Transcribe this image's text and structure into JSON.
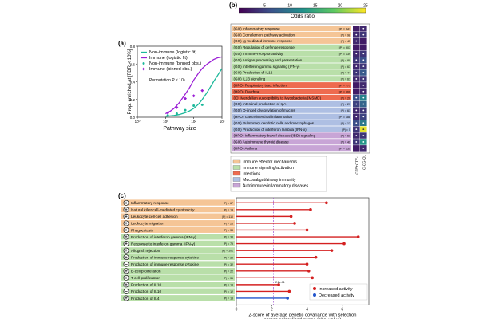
{
  "figure": {
    "panel_labels": {
      "a": "(a)",
      "b": "(b)",
      "c": "(c)"
    },
    "colors": {
      "immune": "#9b1fd6",
      "nonimmune": "#1bb89a",
      "cat_immune_effector": "#f5c596",
      "cat_immune_signaling": "#b9dfa9",
      "cat_infections": "#ee6b4f",
      "cat_mucosal": "#aebfe3",
      "cat_autoimmune": "#c8a5d6",
      "increased": "#d42020",
      "decreased": "#2255cc",
      "threshold": "#a050d0"
    }
  },
  "chart_data": [
    {
      "id": "a",
      "type": "line",
      "title": "",
      "xlabel": "Pathway size",
      "ylabel": "Prop. enriched at [FDR < 10%]",
      "xscale": "log",
      "xlim": [
        1,
        1000
      ],
      "ylim": [
        0,
        0.8
      ],
      "yticks": [
        0.0,
        0.2,
        0.4,
        0.6,
        0.8
      ],
      "ytick_labels": [
        "0.0",
        "0.2",
        "0.4",
        "0.6",
        "0.8"
      ],
      "xtick_labels": [
        "10⁰",
        "10¹",
        "10²",
        "10³"
      ],
      "annotation": "Permutation P < 10⁵",
      "legend": [
        "Non-immune (logistic fit)",
        "Immune (logistic fit)",
        "Non-immune (binned obs.)",
        "Immune (binned obs.)"
      ],
      "series": [
        {
          "name": "Non-immune (logistic fit)",
          "kind": "line",
          "x": [
            10,
            15,
            20,
            30,
            50,
            70,
            100,
            150,
            200,
            300,
            500,
            700,
            1000
          ],
          "y": [
            0.01,
            0.015,
            0.02,
            0.03,
            0.05,
            0.07,
            0.1,
            0.15,
            0.2,
            0.28,
            0.4,
            0.47,
            0.55
          ]
        },
        {
          "name": "Immune (logistic fit)",
          "kind": "line",
          "x": [
            10,
            15,
            20,
            30,
            50,
            70,
            100,
            150,
            200,
            300,
            500,
            700,
            1000
          ],
          "y": [
            0.04,
            0.07,
            0.1,
            0.16,
            0.26,
            0.33,
            0.42,
            0.5,
            0.55,
            0.6,
            0.65,
            0.67,
            0.68
          ]
        },
        {
          "name": "Non-immune (binned obs.)",
          "kind": "scatter",
          "x": [
            12,
            25,
            50,
            100,
            200
          ],
          "y": [
            0.02,
            0.04,
            0.08,
            0.13,
            0.14
          ]
        },
        {
          "name": "Immune (binned obs.)",
          "kind": "scatter",
          "x": [
            12,
            25,
            50,
            100,
            200
          ],
          "y": [
            0.05,
            0.11,
            0.21,
            0.24,
            0.3
          ]
        }
      ]
    },
    {
      "id": "b",
      "type": "heatmap",
      "colorbar_label": "Odds ratio",
      "colorbar_ticks": [
        "5",
        "10",
        "15",
        "20",
        "25"
      ],
      "colorbar_range": [
        0,
        25
      ],
      "columns": [
        "CTE+CTE-1",
        "C-CG-QL"
      ],
      "rows": [
        {
          "label": "(GO) Inflammatory response",
          "p": "|P| = 847",
          "cat": "cat_immune_effector",
          "v": [
            2,
            3
          ]
        },
        {
          "label": "(GO) Complement pathway activation",
          "p": "|P| = 98",
          "cat": "cat_immune_effector",
          "v": [
            3,
            4
          ]
        },
        {
          "label": "(GO) Ig-mediated immune response",
          "p": "|P| = 45",
          "cat": "cat_immune_effector",
          "v": [
            3,
            2
          ]
        },
        {
          "label": "(GO) Regulation of defense response",
          "p": "|P| = 903",
          "cat": "cat_immune_signaling",
          "v": [
            2,
            2
          ]
        },
        {
          "label": "(GO) Immune-receptor activity",
          "p": "|P| = 139",
          "cat": "cat_immune_signaling",
          "v": [
            3,
            4
          ]
        },
        {
          "label": "(GO) Antigen processing and presentation",
          "p": "|P| = 80",
          "cat": "cat_immune_signaling",
          "v": [
            4,
            6
          ]
        },
        {
          "label": "(GO) Interferon-gamma signaling (IFN-γ)",
          "p": "|P| = 63",
          "cat": "cat_immune_signaling",
          "v": [
            3,
            4
          ]
        },
        {
          "label": "(GO) Production of IL12",
          "p": "|P| = 44",
          "cat": "cat_immune_signaling",
          "v": [
            4,
            7
          ]
        },
        {
          "label": "(GO) IL23 signaling",
          "p": "|P| = 61",
          "cat": "cat_immune_signaling",
          "v": [
            3,
            4
          ]
        },
        {
          "label": "(HPO) Respiratory tract infection",
          "p": "|P| = 777",
          "cat": "cat_infections",
          "v": [
            2,
            3
          ]
        },
        {
          "label": "(HPO) Diarrhea",
          "p": "|P| = 566",
          "cat": "cat_infections",
          "v": [
            2,
            3
          ]
        },
        {
          "label": "(ID) Mendelian susceptibility to Mycobacteria (MSMD)",
          "p": "|P| = 20",
          "cat": "cat_infections",
          "v": [
            6,
            11
          ]
        },
        {
          "label": "(GO) Intestinal production of IgA",
          "p": "|P| = 21",
          "cat": "cat_mucosal",
          "v": [
            5,
            8
          ]
        },
        {
          "label": "(GO) O-linked glycosylation of mucins",
          "p": "|P| = 61",
          "cat": "cat_mucosal",
          "v": [
            3,
            4
          ]
        },
        {
          "label": "(HPO) Gastrointestinal inflammation",
          "p": "|P| = 188",
          "cat": "cat_mucosal",
          "v": [
            3,
            5
          ]
        },
        {
          "label": "(GO) Pulmonary dendritic cells and macrophages",
          "p": "|P| = 13",
          "cat": "cat_mucosal",
          "v": [
            6,
            10
          ]
        },
        {
          "label": "(GO) Production of interferon lambda (IFN-λ)",
          "p": "|P| = 5",
          "cat": "cat_mucosal",
          "v": [
            4,
            24
          ]
        },
        {
          "label": "(HPO) Inflammatory bowel disease (IBD) signaling",
          "p": "|P| = 61",
          "cat": "cat_autoimmune",
          "v": [
            3,
            4
          ]
        },
        {
          "label": "(GO) Autoimmune thyroid disease",
          "p": "|P| = 49",
          "cat": "cat_autoimmune",
          "v": [
            4,
            13
          ]
        },
        {
          "label": "(HPO) Asthma",
          "p": "|P| = 159",
          "cat": "cat_autoimmune",
          "v": [
            2,
            3
          ]
        }
      ],
      "legend": [
        {
          "label": "Immune effector mechanisms",
          "cat": "cat_immune_effector"
        },
        {
          "label": "Immune signaling/activation",
          "cat": "cat_immune_signaling"
        },
        {
          "label": "Infections",
          "cat": "cat_infections"
        },
        {
          "label": "Mucosal/gut/airway immunity",
          "cat": "cat_mucosal"
        },
        {
          "label": "Autoimmune/inflammatory diseases",
          "cat": "cat_autoimmune"
        }
      ]
    },
    {
      "id": "c",
      "type": "bar",
      "orientation": "horizontal",
      "xlabel": "Z-score of average genetic covariance with selection across colocalized genes (abs. value)",
      "xlim": [
        0,
        7.5
      ],
      "xticks": [
        0,
        2,
        4,
        6
      ],
      "xtick_labels": [
        "0",
        "2",
        "4",
        "6"
      ],
      "threshold": 2.1,
      "legend": [
        "Increased activity",
        "Decreased activity"
      ],
      "rows": [
        {
          "label": "Inflammatory response",
          "p": "|P| = 67",
          "sign": "+",
          "dir": "increased",
          "value": 5.1,
          "point_label": "",
          "cat": "cat_immune_effector"
        },
        {
          "label": "Natural killer cell-mediated cytotoxicity",
          "p": "|P| = 14",
          "sign": "+",
          "dir": "increased",
          "value": 4.2,
          "point_label": "",
          "cat": "cat_immune_effector"
        },
        {
          "label": "Leukocyte cell-cell adhesion",
          "p": "|P| = 110",
          "sign": "+",
          "dir": "increased",
          "value": 3.1,
          "point_label": "",
          "cat": "cat_immune_effector"
        },
        {
          "label": "Leukocyte migration",
          "p": "|P| = 26",
          "sign": "+",
          "dir": "increased",
          "value": 3.3,
          "point_label": "",
          "cat": "cat_immune_effector"
        },
        {
          "label": "Phagocytosis",
          "p": "|P| = 33",
          "sign": "+",
          "dir": "increased",
          "value": 4.0,
          "point_label": "",
          "cat": "cat_immune_effector"
        },
        {
          "label": "Production of interferon gamma (IFN-γ)",
          "p": "|P| = 38",
          "sign": "+",
          "dir": "increased",
          "value": 6.9,
          "point_label": "",
          "cat": "cat_immune_signaling"
        },
        {
          "label": "Response to interferon gamma (IFN-γ)",
          "p": "|P| = 79",
          "sign": "+",
          "dir": "increased",
          "value": 6.1,
          "point_label": "",
          "cat": "cat_immune_signaling"
        },
        {
          "label": "Allograft rejection",
          "p": "|P| = 101",
          "sign": "+",
          "dir": "increased",
          "value": 5.4,
          "point_label": "",
          "cat": "cat_immune_signaling"
        },
        {
          "label": "Production of immune-response cytokine",
          "p": "|P| = 32",
          "sign": "+",
          "dir": "increased",
          "value": 4.5,
          "point_label": "",
          "cat": "cat_immune_signaling"
        },
        {
          "label": "Production of immune-response cytokine",
          "p": "|P| = 32",
          "sign": "−",
          "dir": "increased",
          "value": 4.0,
          "point_label": "",
          "cat": "cat_immune_signaling"
        },
        {
          "label": "B-cell proliferation",
          "p": "|P| = 22",
          "sign": "+",
          "dir": "increased",
          "value": 4.1,
          "point_label": "",
          "cat": "cat_immune_signaling"
        },
        {
          "label": "T-cell proliferation",
          "p": "|P| = 35",
          "sign": "+",
          "dir": "increased",
          "value": 4.3,
          "point_label": "",
          "cat": "cat_immune_signaling"
        },
        {
          "label": "Production of IL10",
          "p": "|P| = 18",
          "sign": "+",
          "dir": "increased",
          "value": 2.4,
          "point_label": "2.2e-01",
          "cat": "cat_immune_signaling"
        },
        {
          "label": "Production of IL10",
          "p": "|P| = 12",
          "sign": "−",
          "dir": "increased",
          "value": 3.0,
          "point_label": "",
          "cat": "cat_immune_signaling"
        },
        {
          "label": "Production of IL4",
          "p": "|P| = 13",
          "sign": "+",
          "dir": "decreased",
          "value": 2.9,
          "point_label": "",
          "cat": "cat_immune_signaling"
        }
      ]
    }
  ]
}
